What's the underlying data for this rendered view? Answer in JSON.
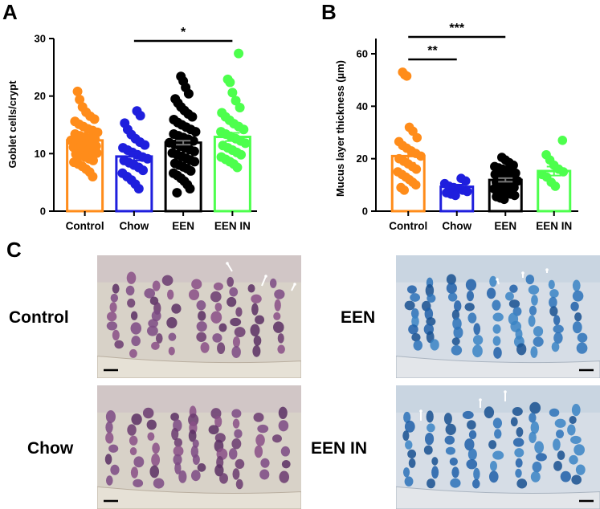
{
  "panels": {
    "A": "A",
    "B": "B",
    "C": "C"
  },
  "chart_data": [
    {
      "panel": "A",
      "type": "bar",
      "categories": [
        "Control",
        "Chow",
        "EEN",
        "EEN IN"
      ],
      "values": [
        12.3,
        9.5,
        11.9,
        12.9
      ],
      "errors": [
        0.4,
        0.7,
        0.35,
        0.7
      ],
      "colors": [
        "#ff8c1a",
        "#1f1fdd",
        "#000000",
        "#4dff4d"
      ],
      "ylabel": "Goblet cells/crypt",
      "ylim": [
        0,
        30
      ],
      "yticks": [
        "0",
        "10",
        "20",
        "30"
      ],
      "significance": [
        {
          "from": "Chow",
          "to": "EEN IN",
          "label": "*"
        }
      ],
      "points": [
        [
          20.8,
          19.4,
          18.1,
          17.2,
          16.5,
          16.0,
          15.6,
          15.1,
          14.7,
          14.3,
          14.0,
          13.7,
          13.4,
          13.1,
          12.9,
          12.7,
          12.5,
          12.3,
          12.1,
          11.9,
          11.7,
          11.5,
          11.3,
          11.1,
          10.9,
          10.7,
          10.5,
          10.3,
          10.1,
          9.9,
          9.7,
          9.4,
          9.1,
          8.8,
          8.5,
          8.2,
          7.8,
          7.3,
          6.8,
          6.0
        ],
        [
          17.4,
          16.6,
          15.3,
          14.2,
          13.3,
          12.6,
          12.0,
          11.5,
          11.0,
          10.6,
          10.2,
          9.8,
          9.4,
          9.1,
          8.8,
          8.4,
          8.0,
          7.6,
          7.1,
          6.6,
          6.0,
          5.4,
          4.7,
          3.9
        ],
        [
          23.4,
          22.6,
          21.5,
          20.4,
          19.5,
          18.8,
          18.1,
          17.5,
          16.9,
          16.4,
          15.9,
          15.4,
          15.0,
          14.6,
          14.2,
          13.8,
          13.4,
          13.1,
          12.8,
          12.5,
          12.2,
          11.9,
          11.6,
          11.3,
          11.0,
          10.7,
          10.4,
          10.1,
          9.8,
          9.5,
          9.2,
          8.9,
          8.6,
          8.3,
          8.0,
          7.7,
          7.4,
          7.0,
          6.6,
          6.2,
          5.7,
          5.2,
          4.6,
          3.9,
          3.2
        ],
        [
          27.4,
          22.9,
          22.4,
          20.6,
          19.2,
          18.0,
          17.1,
          16.4,
          15.8,
          15.2,
          14.7,
          14.2,
          13.8,
          13.4,
          13.0,
          12.6,
          12.2,
          11.8,
          11.4,
          11.0,
          10.6,
          10.2,
          9.8,
          9.4,
          9.0,
          8.6,
          8.2,
          7.6
        ]
      ]
    },
    {
      "panel": "B",
      "type": "bar",
      "categories": [
        "Control",
        "Chow",
        "EEN",
        "EEN IN"
      ],
      "values": [
        21.0,
        9.3,
        11.9,
        15.3
      ],
      "errors": [
        2.6,
        0.8,
        0.7,
        1.7
      ],
      "colors": [
        "#ff8c1a",
        "#1f1fdd",
        "#000000",
        "#4dff4d"
      ],
      "ylabel": "Mucus layer thickness (µm)",
      "ylim": [
        0,
        60
      ],
      "yticks": [
        "0",
        "20",
        "40",
        "60"
      ],
      "significance": [
        {
          "from": "Control",
          "to": "Chow",
          "label": "**"
        },
        {
          "from": "Control",
          "to": "EEN",
          "label": "***"
        }
      ],
      "points": [
        [
          53.0,
          52.0,
          51.5,
          32.0,
          30.5,
          28.0,
          26.5,
          25.0,
          24.0,
          23.0,
          22.0,
          21.0,
          20.0,
          19.0,
          18.0,
          17.0,
          16.0,
          15.0,
          14.0,
          13.0,
          12.0,
          11.0,
          10.0,
          9.0,
          8.0
        ],
        [
          12.5,
          11.5,
          10.5,
          9.5,
          9.0,
          8.5,
          8.0,
          7.5,
          7.0,
          6.5,
          6.0
        ],
        [
          20.5,
          19.5,
          18.5,
          17.5,
          17.0,
          16.5,
          16.0,
          15.5,
          15.0,
          14.5,
          14.0,
          13.5,
          13.0,
          12.5,
          12.0,
          11.5,
          11.0,
          10.5,
          10.0,
          9.5,
          9.0,
          8.5,
          8.0,
          7.5,
          7.0,
          6.5,
          6.0,
          5.5,
          5.0,
          4.5
        ],
        [
          27.0,
          21.5,
          19.5,
          17.5,
          16.0,
          15.0,
          14.0,
          13.0,
          11.0,
          9.5
        ]
      ]
    }
  ],
  "micrographs": [
    {
      "label": "Control",
      "stain": "pas"
    },
    {
      "label": "EEN",
      "stain": "alcian"
    },
    {
      "label": "Chow",
      "stain": "pas"
    },
    {
      "label": "EEN IN",
      "stain": "alcian"
    }
  ]
}
